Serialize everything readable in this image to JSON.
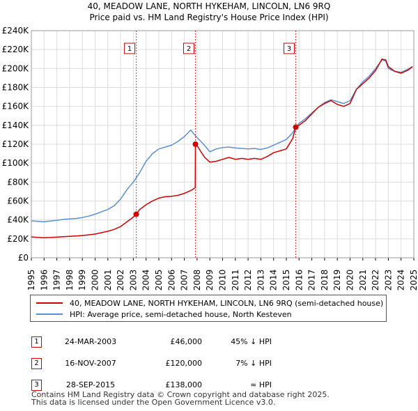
{
  "title_line1": "40, MEADOW LANE, NORTH HYKEHAM, LINCOLN, LN6 9RQ",
  "title_line2": "Price paid vs. HM Land Registry's House Price Index (HPI)",
  "colors": {
    "price_paid": "#cc0000",
    "hpi": "#5b8fd4",
    "marker_line": "#cc0000",
    "grid": "#dddddd"
  },
  "chart_data": {
    "type": "line",
    "xlim": [
      1995,
      2025
    ],
    "ylim": [
      0,
      240000
    ],
    "yticks": [
      0,
      20000,
      40000,
      60000,
      80000,
      100000,
      120000,
      140000,
      160000,
      180000,
      200000,
      220000,
      240000
    ],
    "ytick_labels": [
      "£0",
      "£20K",
      "£40K",
      "£60K",
      "£80K",
      "£100K",
      "£120K",
      "£140K",
      "£160K",
      "£180K",
      "£200K",
      "£220K",
      "£240K"
    ],
    "xticks": [
      "1995",
      "1996",
      "1997",
      "1998",
      "1999",
      "2000",
      "2001",
      "2002",
      "2003",
      "2004",
      "2005",
      "2006",
      "2007",
      "2008",
      "2009",
      "2010",
      "2011",
      "2012",
      "2013",
      "2014",
      "2015",
      "2016",
      "2017",
      "2018",
      "2019",
      "2020",
      "2021",
      "2022",
      "2023",
      "2024",
      "2025"
    ],
    "series": [
      {
        "name": "40, MEADOW LANE, NORTH HYKEHAM, LINCOLN, LN6 9RQ (semi-detached house)",
        "color": "#cc0000",
        "x": [
          1995.0,
          1995.5,
          1996.0,
          1996.5,
          1997.0,
          1997.5,
          1998.0,
          1998.5,
          1999.0,
          1999.5,
          2000.0,
          2000.5,
          2001.0,
          2001.5,
          2002.0,
          2002.5,
          2003.0,
          2003.23,
          2003.5,
          2004.0,
          2004.5,
          2005.0,
          2005.5,
          2006.0,
          2006.5,
          2007.0,
          2007.5,
          2007.85,
          2007.87,
          2008.0,
          2008.3,
          2008.6,
          2009.0,
          2009.5,
          2010.0,
          2010.5,
          2011.0,
          2011.5,
          2012.0,
          2012.5,
          2013.0,
          2013.5,
          2014.0,
          2014.5,
          2015.0,
          2015.5,
          2015.74,
          2016.0,
          2016.5,
          2017.0,
          2017.5,
          2018.0,
          2018.5,
          2019.0,
          2019.5,
          2020.0,
          2020.5,
          2021.0,
          2021.5,
          2022.0,
          2022.5,
          2022.8,
          2023.0,
          2023.5,
          2024.0,
          2024.5,
          2024.9
        ],
        "y": [
          22000,
          21500,
          21200,
          21400,
          21800,
          22200,
          22600,
          23000,
          23500,
          24200,
          25000,
          26500,
          28000,
          30000,
          33000,
          38000,
          43000,
          46000,
          51000,
          56000,
          60000,
          63000,
          64500,
          65000,
          66000,
          68000,
          71000,
          74000,
          120000,
          118500,
          112000,
          106000,
          101000,
          102000,
          104000,
          106000,
          104000,
          105000,
          104000,
          105000,
          104000,
          107000,
          111000,
          113000,
          115000,
          126000,
          138000,
          140000,
          145000,
          152000,
          159000,
          163000,
          166000,
          162000,
          160000,
          163000,
          178000,
          184000,
          190000,
          198000,
          210000,
          209000,
          202000,
          197000,
          195000,
          198000,
          202000
        ]
      },
      {
        "name": "HPI: Average price, semi-detached house, North Kesteven",
        "color": "#5b8fd4",
        "x": [
          1995.0,
          1995.5,
          1996.0,
          1996.5,
          1997.0,
          1997.5,
          1998.0,
          1998.5,
          1999.0,
          1999.5,
          2000.0,
          2000.5,
          2001.0,
          2001.5,
          2002.0,
          2002.5,
          2003.0,
          2003.5,
          2004.0,
          2004.5,
          2005.0,
          2005.5,
          2006.0,
          2006.5,
          2007.0,
          2007.5,
          2007.87,
          2008.0,
          2008.5,
          2009.0,
          2009.5,
          2010.0,
          2010.5,
          2011.0,
          2011.5,
          2012.0,
          2012.5,
          2013.0,
          2013.5,
          2014.0,
          2014.5,
          2015.0,
          2015.5,
          2015.74,
          2016.0,
          2016.5,
          2017.0,
          2017.5,
          2018.0,
          2018.5,
          2019.0,
          2019.5,
          2020.0,
          2020.5,
          2021.0,
          2021.5,
          2022.0,
          2022.5,
          2022.8,
          2023.0,
          2023.5,
          2024.0,
          2024.5,
          2024.9
        ],
        "y": [
          39000,
          38500,
          38000,
          38800,
          39500,
          40500,
          41000,
          41500,
          42500,
          44000,
          46000,
          48500,
          51000,
          55000,
          62000,
          72000,
          80000,
          90000,
          102000,
          110000,
          115000,
          117000,
          119000,
          123000,
          128000,
          135000,
          129000,
          127000,
          120000,
          112000,
          115000,
          116500,
          117000,
          116000,
          115500,
          115000,
          115500,
          114500,
          116000,
          119000,
          122000,
          125000,
          132000,
          138000,
          142000,
          147000,
          153000,
          159000,
          164000,
          167000,
          165000,
          163000,
          166000,
          178000,
          186000,
          192000,
          200000,
          209000,
          208000,
          200000,
          197000,
          196000,
          199000,
          202000
        ]
      }
    ],
    "markers": [
      {
        "label": "1",
        "x": 2003.23,
        "y": 46000
      },
      {
        "label": "2",
        "x": 2007.87,
        "y": 120000
      },
      {
        "label": "3",
        "x": 2015.74,
        "y": 138000
      }
    ]
  },
  "legend": {
    "price_paid": "40, MEADOW LANE, NORTH HYKEHAM, LINCOLN, LN6 9RQ (semi-detached house)",
    "hpi": "HPI: Average price, semi-detached house, North Kesteven"
  },
  "sales": [
    {
      "num": "1",
      "date": "24-MAR-2003",
      "price": "£46,000",
      "relation": "45% ↓ HPI"
    },
    {
      "num": "2",
      "date": "16-NOV-2007",
      "price": "£120,000",
      "relation": "7% ↓ HPI"
    },
    {
      "num": "3",
      "date": "28-SEP-2015",
      "price": "£138,000",
      "relation": "≈ HPI"
    }
  ],
  "footer_line1": "Contains HM Land Registry data © Crown copyright and database right 2025.",
  "footer_line2": "This data is licensed under the Open Government Licence v3.0."
}
